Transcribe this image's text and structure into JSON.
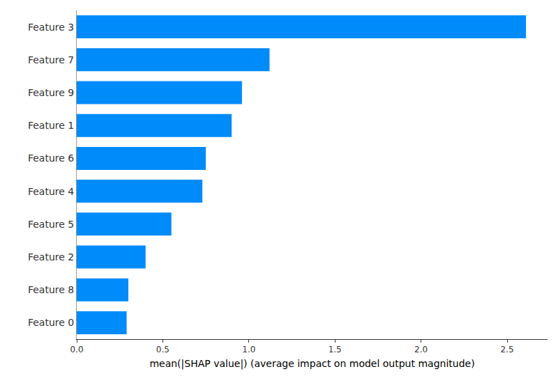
{
  "chart_data": {
    "type": "bar",
    "orientation": "horizontal",
    "xlabel": "mean(|SHAP value|) (average impact on model output magnitude)",
    "categories": [
      "Feature 3",
      "Feature 7",
      "Feature 9",
      "Feature 1",
      "Feature 6",
      "Feature 4",
      "Feature 5",
      "Feature 2",
      "Feature 8",
      "Feature 0"
    ],
    "values": [
      2.61,
      1.12,
      0.96,
      0.9,
      0.75,
      0.73,
      0.55,
      0.4,
      0.3,
      0.29
    ],
    "color": "#008bfb",
    "xlim": [
      0,
      2.735
    ],
    "xticks": [
      {
        "value": 0,
        "label": "0.0"
      },
      {
        "value": 0.5,
        "label": "0.5"
      },
      {
        "value": 1,
        "label": "1.0"
      },
      {
        "value": 1.5,
        "label": "1.5"
      },
      {
        "value": 2,
        "label": "2.0"
      },
      {
        "value": 2.5,
        "label": "2.5"
      }
    ],
    "grid": false
  }
}
